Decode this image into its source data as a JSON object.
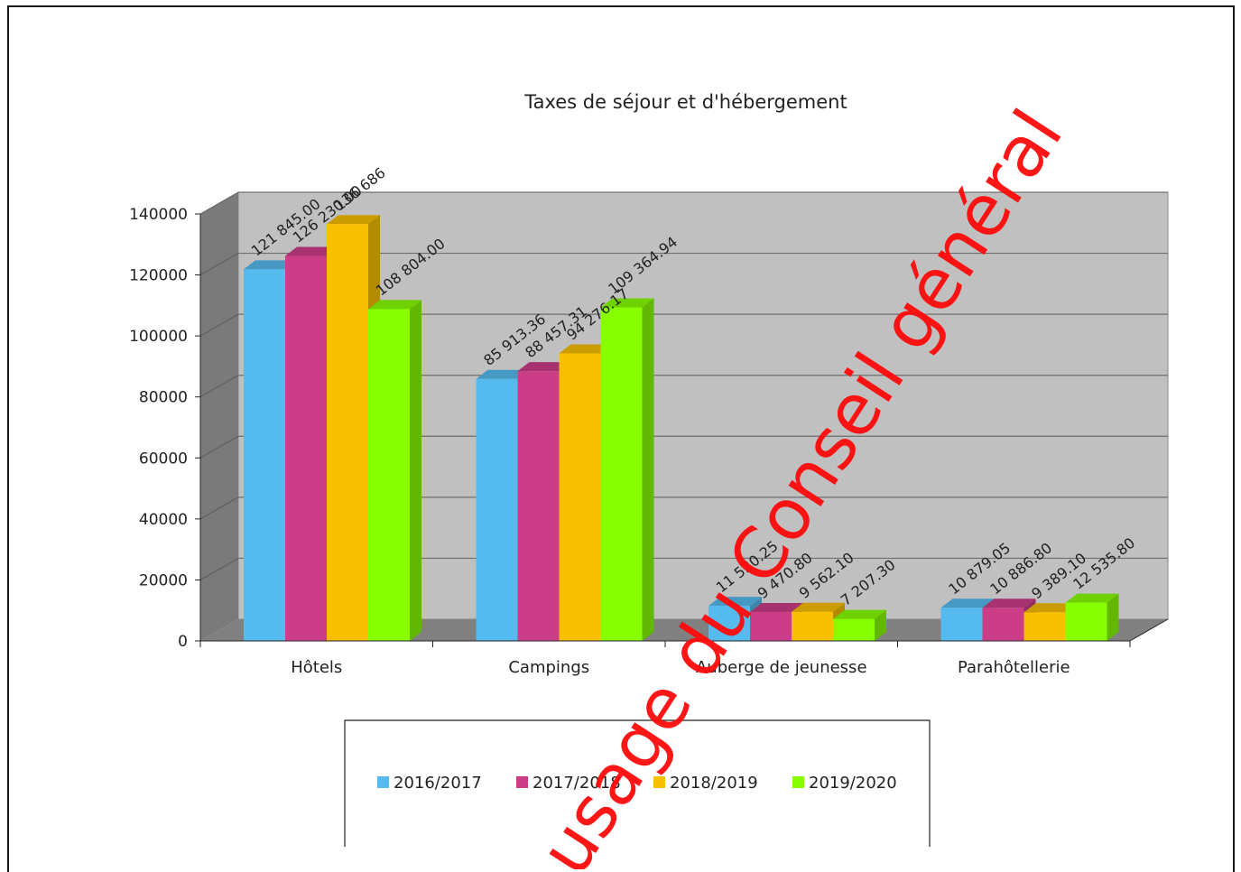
{
  "chart_data": {
    "type": "bar",
    "title": "Taxes de séjour et d'hébergement",
    "xlabel": "",
    "ylabel": "",
    "ylim": [
      0,
      140000
    ],
    "yticks": [
      0,
      20000,
      40000,
      60000,
      80000,
      100000,
      120000,
      140000
    ],
    "ytick_labels": [
      "0",
      "20000",
      "40000",
      "60000",
      "80000",
      "100000",
      "120000",
      "140000"
    ],
    "categories": [
      "Hôtels",
      "Campings",
      "Auberge de jeunesse",
      "Parahôtellerie"
    ],
    "series": [
      {
        "name": "2016/2017",
        "color": "#55bbee",
        "values": [
          121845.0,
          85913.36,
          11520.25,
          10879.05
        ],
        "labels": [
          "121 845.00",
          "85 913.36",
          "11 520.25",
          "10 879.05"
        ]
      },
      {
        "name": "2017/2018",
        "color": "#cc3d88",
        "values": [
          126230.0,
          88457.31,
          9470.8,
          10886.8
        ],
        "labels": [
          "126 230.00",
          "88 457.31",
          "9 470.80",
          "10 886.80"
        ]
      },
      {
        "name": "2018/2019",
        "color": "#f8c000",
        "values": [
          136686,
          94276.17,
          9562.1,
          9389.1
        ],
        "labels": [
          "136 686",
          "94 276.17",
          "9 562.10",
          "9 389.10"
        ]
      },
      {
        "name": "2019/2020",
        "color": "#88ff00",
        "values": [
          108804.0,
          109364.94,
          7207.3,
          12535.8
        ],
        "labels": [
          "108 804.00",
          "109 364.94",
          "7 207.30",
          "12 535.80"
        ]
      }
    ],
    "grid": true,
    "legend_position": "bottom",
    "style": "3d-clustered-column"
  },
  "watermark": {
    "text": "usage du Conseil général",
    "color": "#ff0a0a"
  },
  "colors": {
    "wall": "#c0c0c0",
    "side_wall": "#7a7a7a",
    "floor": "#808080"
  }
}
